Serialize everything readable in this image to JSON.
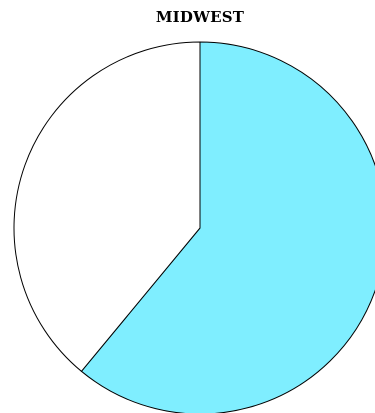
{
  "chart_data": {
    "type": "pie",
    "title": "MIDWEST",
    "legend": "none",
    "slices": [
      {
        "value": 61,
        "color": "#7FEEFF"
      },
      {
        "value": 39,
        "color": "#FFFFFF"
      }
    ]
  }
}
